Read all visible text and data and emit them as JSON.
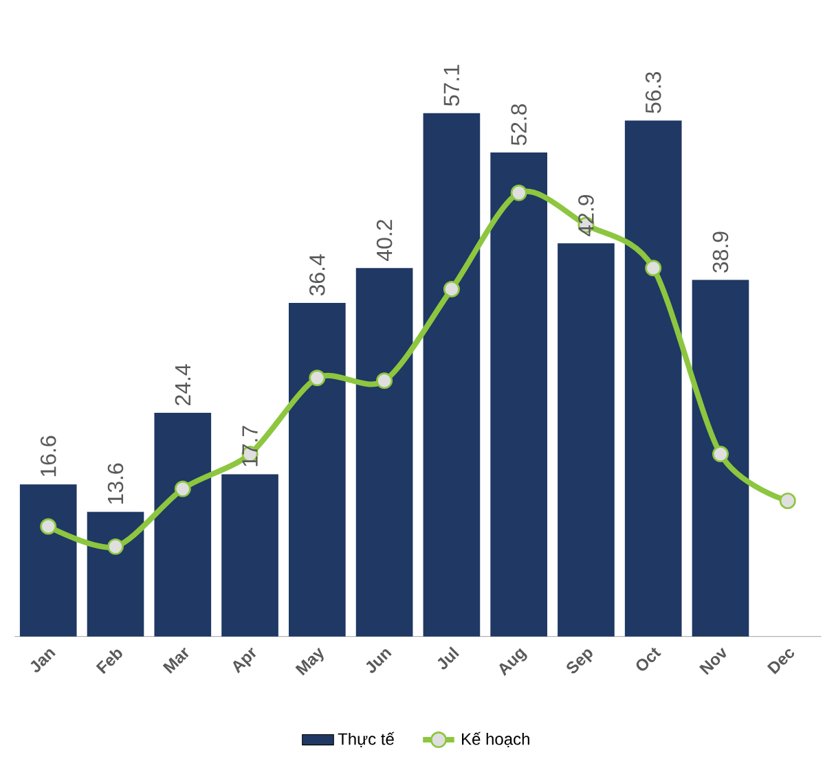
{
  "chart_data": {
    "type": "bar",
    "categories": [
      "Jan",
      "Feb",
      "Mar",
      "Apr",
      "May",
      "Jun",
      "Jul",
      "Aug",
      "Sep",
      "Oct",
      "Nov",
      "Dec"
    ],
    "series": [
      {
        "name": "Thực tế",
        "color": "#1f3864",
        "values": [
          16.6,
          13.6,
          24.4,
          17.7,
          36.4,
          40.2,
          57.1,
          52.8,
          42.9,
          56.3,
          38.9,
          null
        ],
        "value_labels": [
          "16.6",
          "13.6",
          "24.4",
          "17.7",
          "36.4",
          "40.2",
          "57.1",
          "52.8",
          "42.9",
          "56.3",
          "38.9",
          null
        ]
      },
      {
        "name": "Kế hoạch",
        "type": "line",
        "color": "#8dc63f",
        "marker": "circle",
        "values": [
          12.0,
          9.8,
          16.1,
          19.9,
          28.2,
          27.9,
          37.9,
          48.4,
          44.9,
          40.2,
          19.9,
          14.8
        ]
      }
    ],
    "legend": "bottom"
  }
}
